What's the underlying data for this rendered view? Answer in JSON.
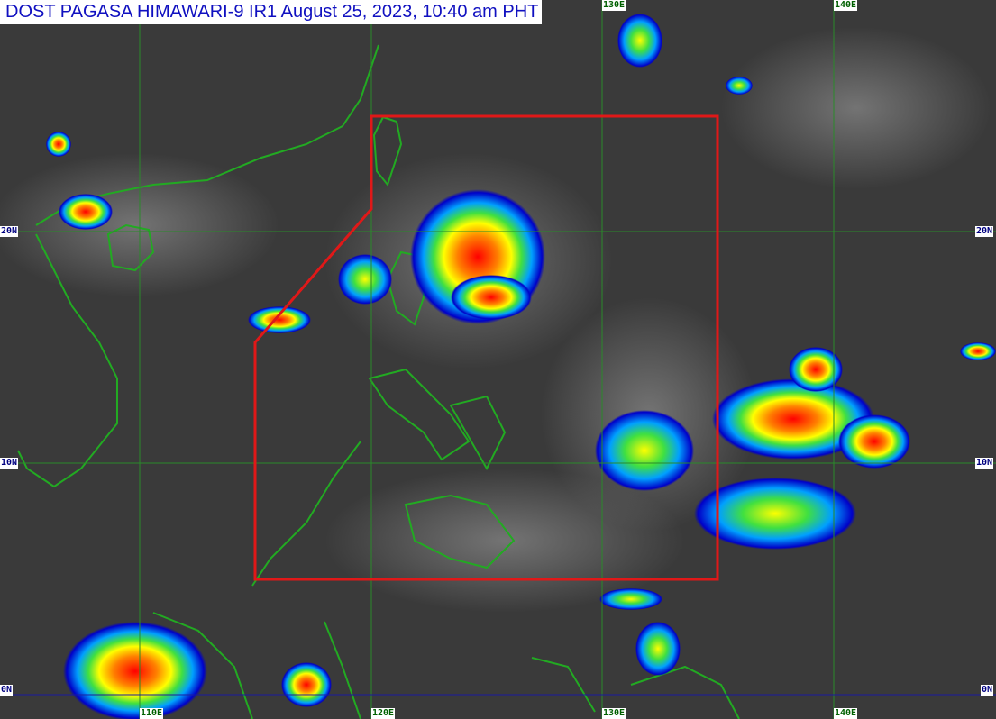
{
  "title": "DOST PAGASA HIMAWARI-9 IR1 August 25, 2023, 10:40 am PHT",
  "latitude_labels": [
    "20N",
    "10N",
    "0N"
  ],
  "longitude_labels": [
    "110E",
    "120E",
    "130E",
    "140E"
  ],
  "colors": {
    "background": "#3a3a3a",
    "coastline": "#22aa22",
    "gridline": "#2a8a2a",
    "equator": "#1a1aa0",
    "par_boundary": "#e01818",
    "cloud_scale": [
      "#0000c8",
      "#00a0ff",
      "#40e040",
      "#ffff00",
      "#ff8000",
      "#ff0000"
    ]
  },
  "overlay": "Philippine Area of Responsibility boundary"
}
